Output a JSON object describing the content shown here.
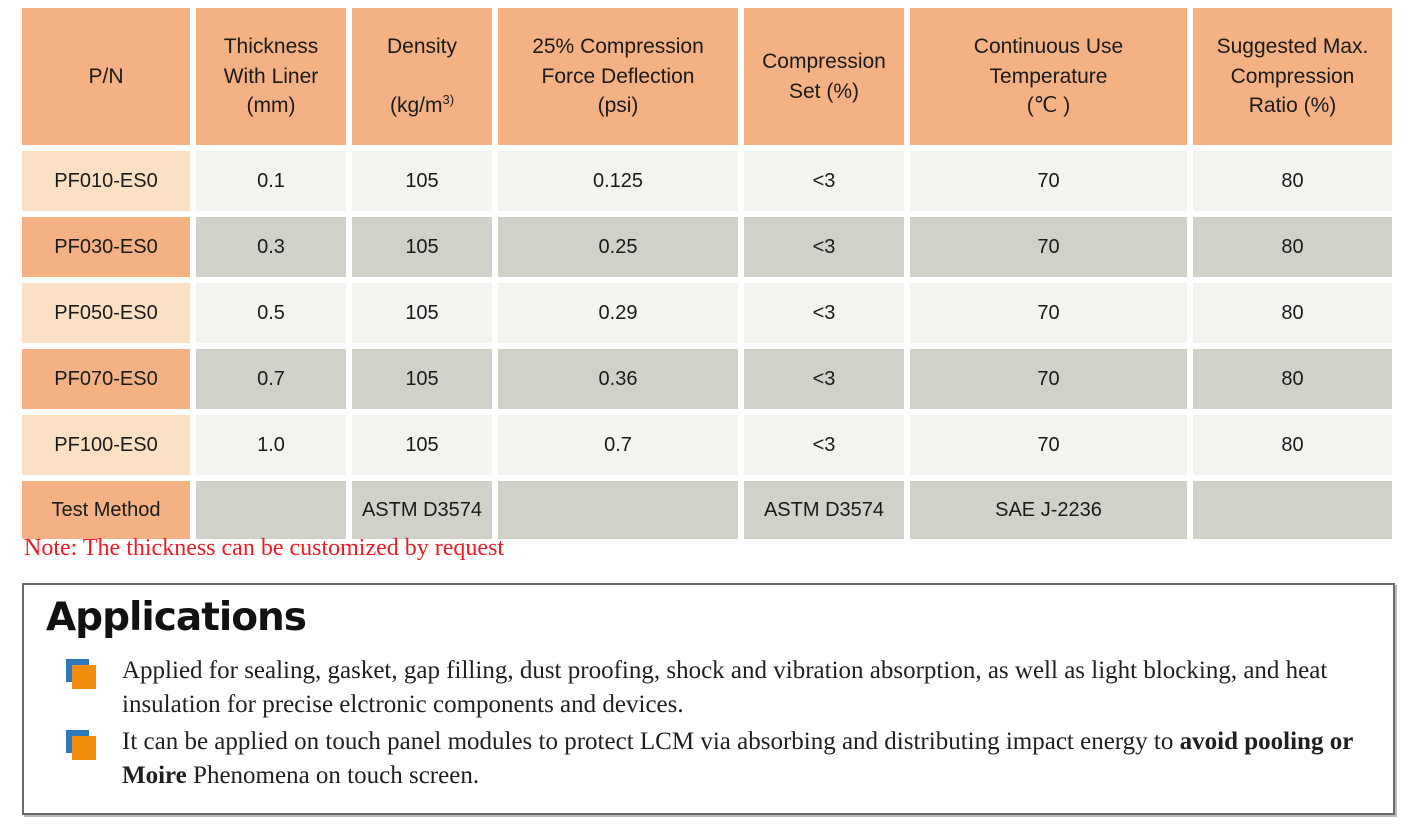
{
  "table": {
    "header": {
      "pn": "P/N",
      "thickness": "Thickness\nWith Liner\n(mm)",
      "density_line1": "Density",
      "density_prefix": "(kg/m",
      "density_sup": "3)",
      "cfd": "25% Compression\nForce Deflection\n(psi)",
      "set": "Compression\nSet (%)",
      "temp": "Continuous Use\nTemperature\n(℃ )",
      "ratio": "Suggested Max.\nCompression\nRatio (%)"
    },
    "rows": [
      {
        "pn": "PF010-ES0",
        "thickness": "0.1",
        "density": "105",
        "cfd": "0.125",
        "set": "<3",
        "temp": "70",
        "ratio": "80"
      },
      {
        "pn": "PF030-ES0",
        "thickness": "0.3",
        "density": "105",
        "cfd": "0.25",
        "set": "<3",
        "temp": "70",
        "ratio": "80"
      },
      {
        "pn": "PF050-ES0",
        "thickness": "0.5",
        "density": "105",
        "cfd": "0.29",
        "set": "<3",
        "temp": "70",
        "ratio": "80"
      },
      {
        "pn": "PF070-ES0",
        "thickness": "0.7",
        "density": "105",
        "cfd": "0.36",
        "set": "<3",
        "temp": "70",
        "ratio": "80"
      },
      {
        "pn": "PF100-ES0",
        "thickness": "1.0",
        "density": "105",
        "cfd": "0.7",
        "set": "<3",
        "temp": "70",
        "ratio": "80"
      }
    ],
    "test_method": {
      "label": "Test Method",
      "thickness": "",
      "density": "ASTM D3574",
      "cfd": "",
      "set": "ASTM D3574",
      "temp": "SAE J-2236",
      "ratio": ""
    }
  },
  "note": "Note: The thickness can be customized by request",
  "applications": {
    "title": "Applications",
    "bullets": [
      {
        "prefix": "Applied for sealing, gasket, gap filling, dust proofing, shock and vibration absorption, as well as light blocking, and heat insulation for precise elctronic components and devices.",
        "bold": "",
        "suffix": ""
      },
      {
        "prefix": "It can be applied on touch panel modules to protect LCM via absorbing and distributing impact energy to ",
        "bold": "avoid pooling or Moire",
        "suffix": " Phenomena on touch screen."
      }
    ]
  },
  "colors": {
    "header_orange": "#F4B183",
    "row_label_peach": "#FBE0C3",
    "row_label_orange": "#F4B183",
    "cell_gray_light": "#F3F3EF",
    "cell_gray_dark": "#D1D1CA",
    "note_red": "#ED1C24",
    "bullet_orange": "#F28C0F",
    "bullet_blue": "#2E79BD",
    "box_border_gray": "#6A6A6A"
  }
}
